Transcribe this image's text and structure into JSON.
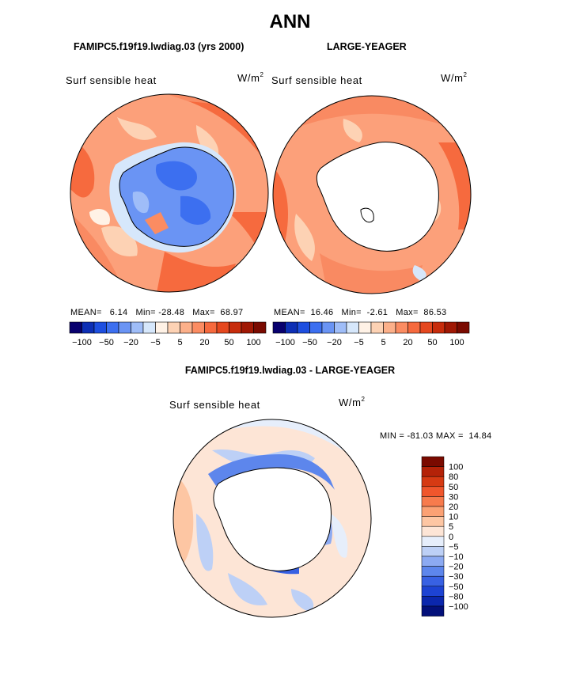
{
  "page": {
    "season": "ANN"
  },
  "panels": [
    {
      "case_title": "FAMIPC5.f19f19.lwdiag.03 (yrs 2000)",
      "variable": "Surf sensible heat",
      "units_base": "W/m",
      "units_exp": "2",
      "mean_label": "MEAN=",
      "mean": "6.14",
      "min_label": "Min=",
      "min": "-28.48",
      "max_label": "Max=",
      "max": "68.97",
      "map_style": "model"
    },
    {
      "case_title": "LARGE-YEAGER",
      "variable": "Surf sensible heat",
      "units_base": "W/m",
      "units_exp": "2",
      "mean_label": "MEAN=",
      "mean": "16.46",
      "min_label": "Min=",
      "min": "-2.61",
      "max_label": "Max=",
      "max": "86.53",
      "map_style": "obs"
    }
  ],
  "colorbar_top": {
    "colors": [
      "#08006e",
      "#0d2fb5",
      "#1e4fe0",
      "#3c6ff0",
      "#6a94f4",
      "#9fbdf8",
      "#d6e7fb",
      "#fff2e6",
      "#fdd2b4",
      "#fcb08a",
      "#fb8c62",
      "#f66a3e",
      "#e5481f",
      "#c72c0c",
      "#a01804",
      "#7a0a00"
    ],
    "tick_labels": [
      "-100",
      "-50",
      "-20",
      "-5",
      "5",
      "20",
      "50",
      "100"
    ]
  },
  "diff_panel": {
    "title": "FAMIPC5.f19f19.lwdiag.03 - LARGE-YEAGER",
    "variable": "Surf sensible heat",
    "units_base": "W/m",
    "units_exp": "2",
    "min_label": "MIN =",
    "min": "-81.03",
    "max_label": "MAX =",
    "max": "14.84",
    "colorbar": {
      "colors": [
        "#7a0a00",
        "#b42208",
        "#d63a13",
        "#f0562c",
        "#f77b4d",
        "#fba174",
        "#fdc6a3",
        "#fde5d6",
        "#e6eefb",
        "#bdd0f6",
        "#8caaf2",
        "#5d86ec",
        "#3861e3",
        "#1d43d3",
        "#0b27ad",
        "#03107a"
      ],
      "labels": [
        "100",
        "80",
        "50",
        "30",
        "20",
        "10",
        "5",
        "0",
        "-5",
        "-10",
        "-20",
        "-30",
        "-50",
        "-80",
        "-100"
      ]
    }
  },
  "legend_colors": {
    "land": "#ffffff",
    "coast": "#000000"
  }
}
